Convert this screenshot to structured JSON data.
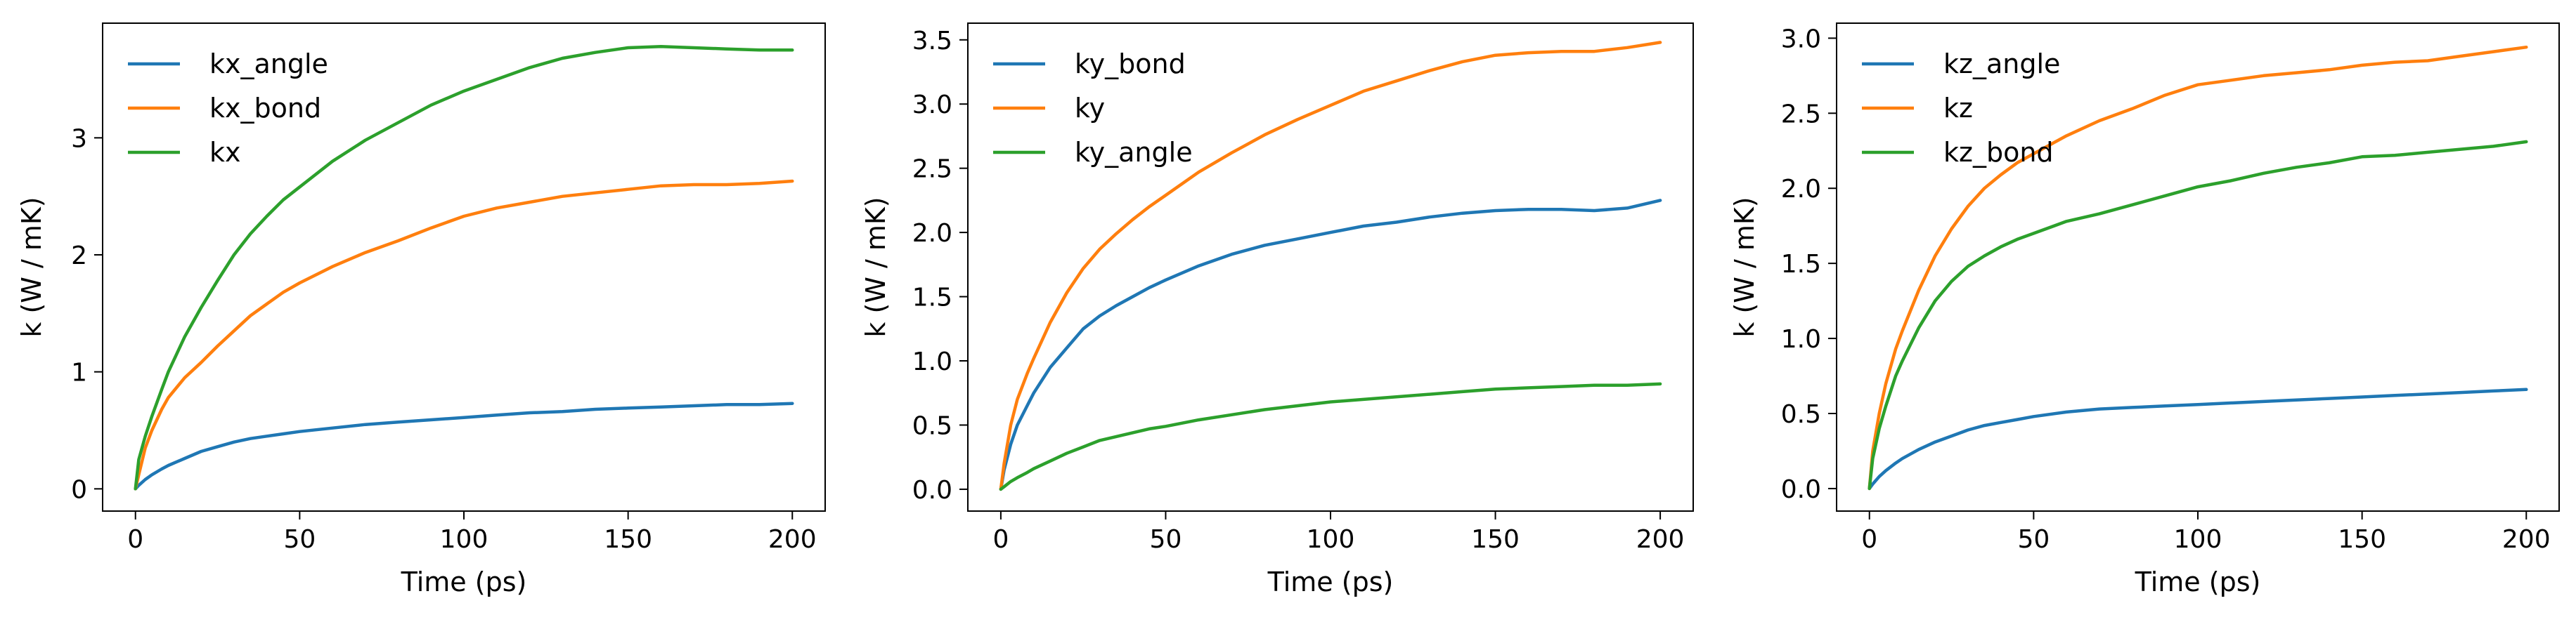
{
  "chart_data": [
    {
      "type": "line",
      "xlabel": "Time (ps)",
      "ylabel": "k (W / mK)",
      "xlim": [
        -10,
        210
      ],
      "ylim": [
        -0.19,
        3.98
      ],
      "xticks": [
        0,
        50,
        100,
        150,
        200
      ],
      "yticks": [
        0,
        1,
        2,
        3
      ],
      "ytick_labels": [
        "0",
        "1",
        "2",
        "3"
      ],
      "legend": "upper-left",
      "x": [
        0,
        1,
        3,
        5,
        8,
        10,
        15,
        20,
        25,
        30,
        35,
        40,
        45,
        50,
        60,
        70,
        80,
        90,
        100,
        110,
        120,
        130,
        140,
        150,
        160,
        170,
        180,
        190,
        200
      ],
      "series": [
        {
          "name": "kx_angle",
          "color": "#1f77b4",
          "values": [
            0.0,
            0.03,
            0.08,
            0.12,
            0.17,
            0.2,
            0.26,
            0.32,
            0.36,
            0.4,
            0.43,
            0.45,
            0.47,
            0.49,
            0.52,
            0.55,
            0.57,
            0.59,
            0.61,
            0.63,
            0.65,
            0.66,
            0.68,
            0.69,
            0.7,
            0.71,
            0.72,
            0.72,
            0.73
          ]
        },
        {
          "name": "kx_bond",
          "color": "#ff7f0e",
          "values": [
            0.0,
            0.12,
            0.35,
            0.5,
            0.68,
            0.78,
            0.95,
            1.08,
            1.22,
            1.35,
            1.48,
            1.58,
            1.68,
            1.76,
            1.9,
            2.02,
            2.12,
            2.23,
            2.33,
            2.4,
            2.45,
            2.5,
            2.53,
            2.56,
            2.59,
            2.6,
            2.6,
            2.61,
            2.63
          ]
        },
        {
          "name": "kx",
          "color": "#2ca02c",
          "values": [
            0.0,
            0.25,
            0.45,
            0.62,
            0.85,
            1.0,
            1.3,
            1.55,
            1.78,
            2.0,
            2.18,
            2.33,
            2.47,
            2.58,
            2.8,
            2.98,
            3.13,
            3.28,
            3.4,
            3.5,
            3.6,
            3.68,
            3.73,
            3.77,
            3.78,
            3.77,
            3.76,
            3.75,
            3.75
          ]
        }
      ]
    },
    {
      "type": "line",
      "xlabel": "Time (ps)",
      "ylabel": "k (W / mK)",
      "xlim": [
        -10,
        210
      ],
      "ylim": [
        -0.17,
        3.63
      ],
      "xticks": [
        0,
        50,
        100,
        150,
        200
      ],
      "yticks": [
        0.0,
        0.5,
        1.0,
        1.5,
        2.0,
        2.5,
        3.0,
        3.5
      ],
      "ytick_labels": [
        "0.0",
        "0.5",
        "1.0",
        "1.5",
        "2.0",
        "2.5",
        "3.0",
        "3.5"
      ],
      "legend": "upper-left",
      "x": [
        0,
        1,
        3,
        5,
        8,
        10,
        15,
        20,
        25,
        30,
        35,
        40,
        45,
        50,
        60,
        70,
        80,
        90,
        100,
        110,
        120,
        130,
        140,
        150,
        160,
        170,
        180,
        190,
        200
      ],
      "series": [
        {
          "name": "ky_bond",
          "color": "#1f77b4",
          "values": [
            0.0,
            0.15,
            0.35,
            0.5,
            0.65,
            0.75,
            0.95,
            1.1,
            1.25,
            1.35,
            1.43,
            1.5,
            1.57,
            1.63,
            1.74,
            1.83,
            1.9,
            1.95,
            2.0,
            2.05,
            2.08,
            2.12,
            2.15,
            2.17,
            2.18,
            2.18,
            2.17,
            2.19,
            2.25
          ]
        },
        {
          "name": "ky",
          "color": "#ff7f0e",
          "values": [
            0.0,
            0.2,
            0.5,
            0.7,
            0.9,
            1.02,
            1.3,
            1.53,
            1.72,
            1.87,
            1.99,
            2.1,
            2.2,
            2.29,
            2.47,
            2.62,
            2.76,
            2.88,
            2.99,
            3.1,
            3.18,
            3.26,
            3.33,
            3.38,
            3.4,
            3.41,
            3.41,
            3.44,
            3.48
          ]
        },
        {
          "name": "ky_angle",
          "color": "#2ca02c",
          "values": [
            0.0,
            0.02,
            0.06,
            0.09,
            0.13,
            0.16,
            0.22,
            0.28,
            0.33,
            0.38,
            0.41,
            0.44,
            0.47,
            0.49,
            0.54,
            0.58,
            0.62,
            0.65,
            0.68,
            0.7,
            0.72,
            0.74,
            0.76,
            0.78,
            0.79,
            0.8,
            0.81,
            0.81,
            0.82
          ]
        }
      ]
    },
    {
      "type": "line",
      "xlabel": "Time (ps)",
      "ylabel": "k (W / mK)",
      "xlim": [
        -10,
        210
      ],
      "ylim": [
        -0.15,
        3.1
      ],
      "xticks": [
        0,
        50,
        100,
        150,
        200
      ],
      "yticks": [
        0.0,
        0.5,
        1.0,
        1.5,
        2.0,
        2.5,
        3.0
      ],
      "ytick_labels": [
        "0.0",
        "0.5",
        "1.0",
        "1.5",
        "2.0",
        "2.5",
        "3.0"
      ],
      "legend": "upper-left",
      "x": [
        0,
        1,
        3,
        5,
        8,
        10,
        15,
        20,
        25,
        30,
        35,
        40,
        45,
        50,
        60,
        70,
        80,
        90,
        100,
        110,
        120,
        130,
        140,
        150,
        160,
        170,
        180,
        190,
        200
      ],
      "series": [
        {
          "name": "kz_angle",
          "color": "#1f77b4",
          "values": [
            0.0,
            0.03,
            0.08,
            0.12,
            0.17,
            0.2,
            0.26,
            0.31,
            0.35,
            0.39,
            0.42,
            0.44,
            0.46,
            0.48,
            0.51,
            0.53,
            0.54,
            0.55,
            0.56,
            0.57,
            0.58,
            0.59,
            0.6,
            0.61,
            0.62,
            0.63,
            0.64,
            0.65,
            0.66
          ]
        },
        {
          "name": "kz",
          "color": "#ff7f0e",
          "values": [
            0.0,
            0.25,
            0.5,
            0.7,
            0.93,
            1.05,
            1.32,
            1.55,
            1.73,
            1.88,
            2.0,
            2.09,
            2.17,
            2.23,
            2.35,
            2.45,
            2.53,
            2.62,
            2.69,
            2.72,
            2.75,
            2.77,
            2.79,
            2.82,
            2.84,
            2.85,
            2.88,
            2.91,
            2.94
          ]
        },
        {
          "name": "kz_bond",
          "color": "#2ca02c",
          "values": [
            0.0,
            0.2,
            0.4,
            0.55,
            0.75,
            0.85,
            1.07,
            1.25,
            1.38,
            1.48,
            1.55,
            1.61,
            1.66,
            1.7,
            1.78,
            1.83,
            1.89,
            1.95,
            2.01,
            2.05,
            2.1,
            2.14,
            2.17,
            2.21,
            2.22,
            2.24,
            2.26,
            2.28,
            2.31
          ]
        }
      ]
    }
  ]
}
